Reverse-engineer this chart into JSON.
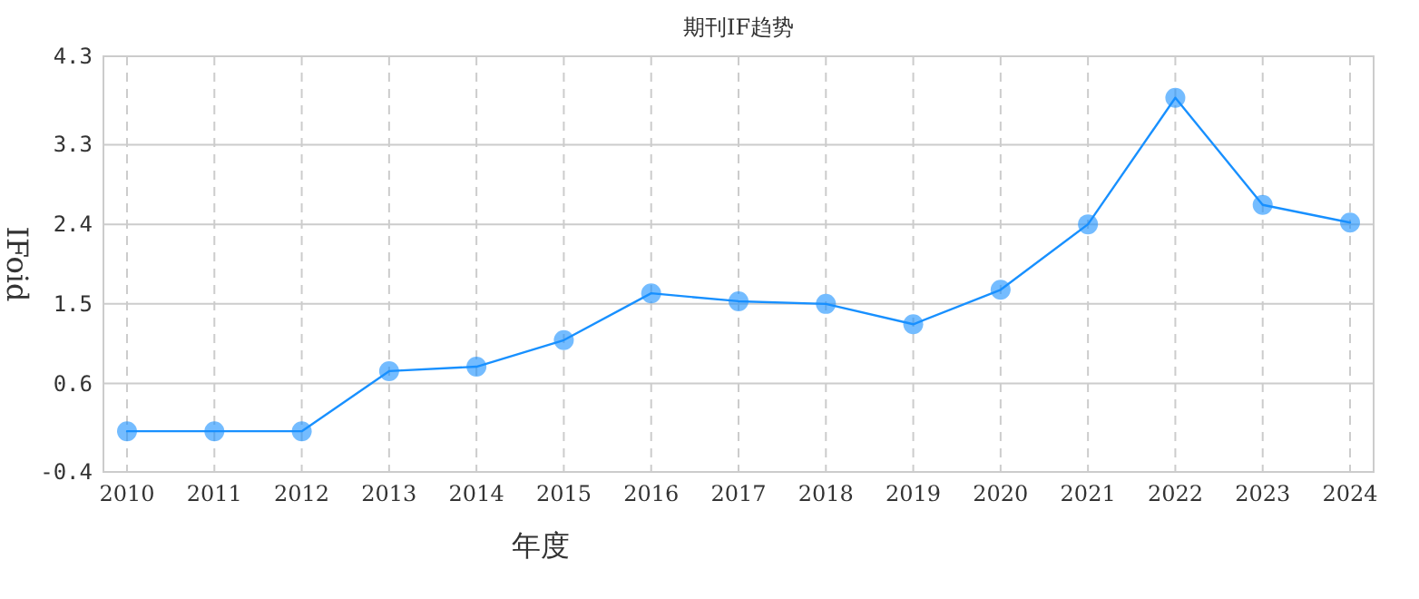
{
  "chart_data": {
    "type": "line",
    "title": "期刊IF趋势",
    "xlabel": "年度",
    "ylabel": "IFoid",
    "categories": [
      "2010",
      "2011",
      "2012",
      "2013",
      "2014",
      "2015",
      "2016",
      "2017",
      "2018",
      "2019",
      "2020",
      "2021",
      "2022",
      "2023",
      "2024"
    ],
    "series": [
      {
        "color": "#1890ff",
        "values": [
          0.06,
          0.06,
          0.06,
          0.74,
          0.79,
          1.09,
          1.62,
          1.53,
          1.5,
          1.27,
          1.66,
          2.4,
          3.83,
          2.62,
          2.42
        ]
      }
    ],
    "ylim": [
      -0.4,
      4.3
    ],
    "yticks": [
      -0.4,
      0.6,
      1.5,
      2.4,
      3.3,
      4.3
    ],
    "grid": true,
    "marker": "circle",
    "line_style": "solid"
  }
}
